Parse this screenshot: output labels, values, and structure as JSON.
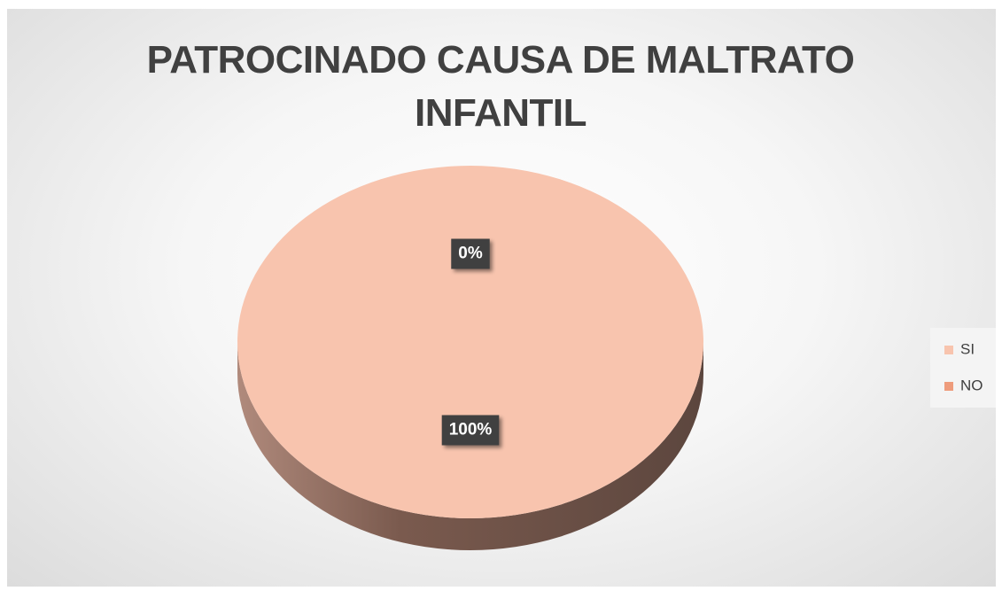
{
  "chart_data": {
    "type": "pie",
    "title": "PATROCINADO CAUSA DE MALTRATO INFANTIL",
    "categories": [
      "SI",
      "NO"
    ],
    "values": [
      100,
      0
    ],
    "value_labels": [
      "100%",
      "0%"
    ],
    "colors": [
      "#f8c4ae",
      "#ee9c7c"
    ],
    "legend": "right"
  }
}
